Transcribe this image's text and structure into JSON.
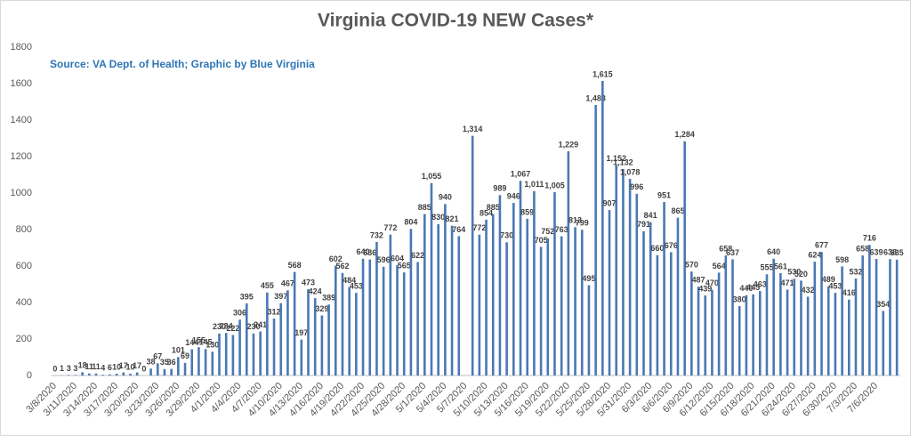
{
  "chart_data": {
    "type": "bar",
    "title": "Virginia COVID-19 NEW Cases*",
    "annotation": "Source: VA Dept. of Health; Graphic by Blue Virginia",
    "color": "#4a78b5",
    "ylim": [
      0,
      1800
    ],
    "yticks": [
      0,
      200,
      400,
      600,
      800,
      1000,
      1200,
      1400,
      1600,
      1800
    ],
    "grid": false,
    "categories": [
      "3/8/2020",
      null,
      null,
      "3/11/2020",
      null,
      null,
      "3/14/2020",
      null,
      null,
      "3/17/2020",
      null,
      null,
      "3/20/2020",
      null,
      null,
      "3/23/2020",
      null,
      null,
      "3/26/2020",
      null,
      null,
      "3/29/2020",
      null,
      null,
      "4/1/2020",
      null,
      null,
      "4/4/2020",
      null,
      null,
      "4/7/2020",
      null,
      null,
      "4/10/2020",
      null,
      null,
      "4/13/2020",
      null,
      null,
      "4/16/2020",
      null,
      null,
      "4/19/2020",
      null,
      null,
      "4/22/2020",
      null,
      null,
      "4/25/2020",
      null,
      null,
      "4/28/2020",
      null,
      null,
      "5/1/2020",
      null,
      null,
      "5/4/2020",
      null,
      null,
      "5/7/2020",
      null,
      null,
      "5/10/2020",
      null,
      null,
      "5/13/2020",
      null,
      null,
      "5/16/2020",
      null,
      null,
      "5/19/2020",
      null,
      null,
      "5/22/2020",
      null,
      null,
      "5/25/2020",
      null,
      null,
      "5/28/2020",
      null,
      null,
      "5/31/2020",
      null,
      null,
      "6/3/2020",
      null,
      null,
      "6/6/2020",
      null,
      null,
      "6/9/2020",
      null,
      null,
      "6/12/2020",
      null,
      null,
      "6/15/2020",
      null,
      null,
      "6/18/2020",
      null,
      null,
      "6/21/2020",
      null,
      null,
      "6/24/2020",
      null,
      null,
      "6/27/2020",
      null,
      null,
      "6/30/2020",
      null,
      null,
      "7/3/2020",
      null,
      null,
      "7/6/2020",
      null,
      null,
      null
    ],
    "values": [
      0,
      1,
      3,
      3,
      18,
      11,
      11,
      4,
      6,
      10,
      17,
      10,
      17,
      0,
      38,
      67,
      35,
      36,
      101,
      69,
      144,
      155,
      145,
      130,
      230,
      234,
      222,
      306,
      395,
      230,
      241,
      455,
      312,
      397,
      467,
      568,
      197,
      473,
      424,
      329,
      389,
      602,
      562,
      484,
      453,
      640,
      636,
      732,
      596,
      772,
      604,
      565,
      804,
      622,
      885,
      1055,
      830,
      940,
      821,
      764,
      null,
      1314,
      772,
      854,
      885,
      989,
      730,
      946,
      1067,
      859,
      1011,
      705,
      752,
      1005,
      763,
      1229,
      813,
      799,
      495,
      1483,
      1615,
      907,
      1152,
      1132,
      1078,
      996,
      791,
      841,
      660,
      951,
      676,
      865,
      1284,
      570,
      487,
      439,
      470,
      564,
      658,
      637,
      380,
      440,
      445,
      463,
      555,
      640,
      561,
      471,
      530,
      520,
      432,
      624,
      677,
      489,
      453,
      598,
      416,
      532,
      658,
      716,
      639,
      354,
      638,
      635
    ],
    "value_labels": [
      "0",
      "1",
      "3",
      "3",
      "18",
      "11",
      "11",
      "4",
      "6",
      "10",
      "17",
      "10",
      "17",
      "0",
      "38",
      "67",
      "35",
      "36",
      "101",
      "69",
      "144",
      "155",
      "145",
      "130",
      "230",
      "234",
      "222",
      "306",
      "395",
      "230",
      "241",
      "455",
      "312",
      "397",
      "467",
      "568",
      "197",
      "473",
      "424",
      "329",
      "389",
      "602",
      "562",
      "484",
      "453",
      "640",
      "636",
      "732",
      "596",
      "772",
      "604",
      "565",
      "804",
      "622",
      "885",
      "1,055",
      "830",
      "940",
      "821",
      "764",
      null,
      "1,314",
      "772",
      "854",
      "885",
      "989",
      "730",
      "946",
      "1,067",
      "859",
      "1,011",
      "705",
      "752",
      "1,005",
      "763",
      "1,229",
      "813",
      "799",
      "495",
      "1,483",
      "1,615",
      "907",
      "1,152",
      "1,132",
      "1,078",
      "996",
      "791",
      "841",
      "660",
      "951",
      "676",
      "865",
      "1,284",
      "570",
      "487",
      "439",
      "470",
      "564",
      "658",
      "637",
      "380",
      "440",
      "445",
      "463",
      "555",
      "640",
      "561",
      "471",
      "530",
      "520",
      "432",
      "624",
      "677",
      "489",
      "453",
      "598",
      "416",
      "532",
      "658",
      "716",
      "639",
      "354",
      "638",
      "635"
    ]
  }
}
